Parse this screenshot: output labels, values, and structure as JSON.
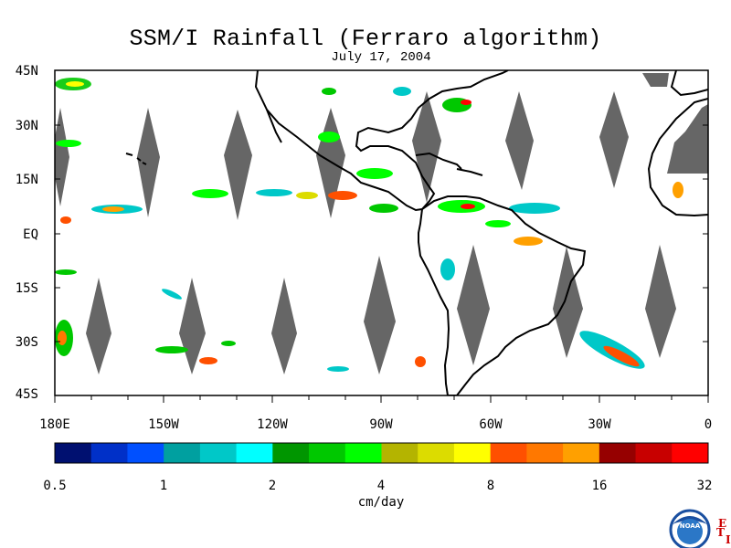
{
  "title": "SSM/I Rainfall (Ferraro algorithm)",
  "date": "July 17, 2004",
  "map": {
    "type": "rainfall map",
    "region": "Eastern Pacific, Americas and Western Atlantic",
    "lon_range": [
      -180,
      0
    ],
    "lat_range": [
      -45,
      45
    ],
    "lat_tick_labels": [
      "45N",
      "30N",
      "15N",
      "EQ",
      "15S",
      "30S",
      "45S"
    ],
    "lon_tick_labels": [
      "180E",
      "150W",
      "120W",
      "90W",
      "60W",
      "30W",
      "0"
    ],
    "no_data_color": "#666666",
    "land_outline_color": "#000000"
  },
  "colorbar": {
    "unit_label": "cm/day",
    "tick_labels": [
      "0.5",
      "1",
      "2",
      "4",
      "8",
      "16",
      "32"
    ],
    "colors": [
      "#001070",
      "#0030c8",
      "#0050ff",
      "#00a0a0",
      "#00c8c8",
      "#00ffff",
      "#009600",
      "#00c800",
      "#00ff00",
      "#b4b400",
      "#dcdc00",
      "#ffff00",
      "#ff5000",
      "#ff7800",
      "#ffa000",
      "#960000",
      "#c80000",
      "#ff0000"
    ]
  },
  "logo": {
    "agency": "NOAA",
    "side_letters": [
      "E",
      "T",
      "I"
    ],
    "accent_color": "#cc0000",
    "ring_color": "#1a4fa0"
  }
}
